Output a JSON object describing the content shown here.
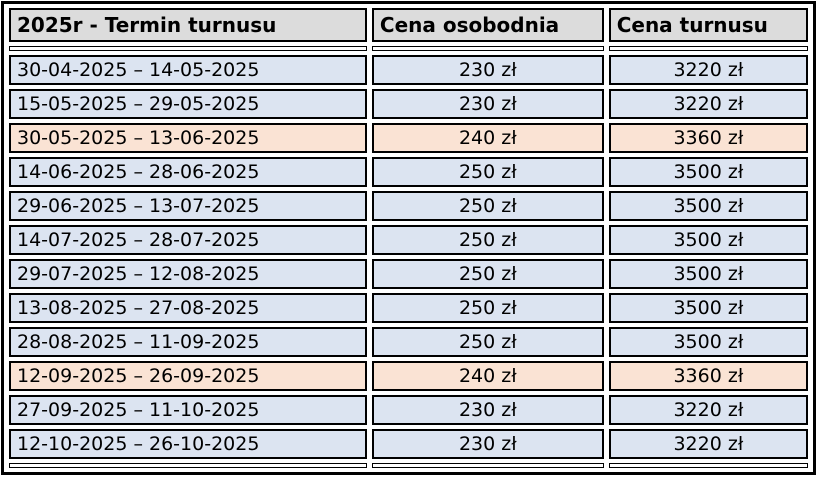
{
  "table": {
    "headers": [
      "2025r - Termin turnusu",
      "Cena osobodnia",
      "Cena turnusu"
    ],
    "rows": [
      {
        "termin": "30-04-2025 – 14-05-2025",
        "cena_osobodnia": "230 zł",
        "cena_turnusu": "3220 zł",
        "highlight": false
      },
      {
        "termin": "15-05-2025 – 29-05-2025",
        "cena_osobodnia": "230 zł",
        "cena_turnusu": "3220 zł",
        "highlight": false
      },
      {
        "termin": "30-05-2025 – 13-06-2025",
        "cena_osobodnia": "240 zł",
        "cena_turnusu": "3360 zł",
        "highlight": true
      },
      {
        "termin": "14-06-2025 – 28-06-2025",
        "cena_osobodnia": "250 zł",
        "cena_turnusu": "3500 zł",
        "highlight": false
      },
      {
        "termin": "29-06-2025 – 13-07-2025",
        "cena_osobodnia": "250 zł",
        "cena_turnusu": "3500 zł",
        "highlight": false
      },
      {
        "termin": "14-07-2025 – 28-07-2025",
        "cena_osobodnia": "250 zł",
        "cena_turnusu": "3500 zł",
        "highlight": false
      },
      {
        "termin": "29-07-2025 – 12-08-2025",
        "cena_osobodnia": "250 zł",
        "cena_turnusu": "3500 zł",
        "highlight": false
      },
      {
        "termin": "13-08-2025 – 27-08-2025",
        "cena_osobodnia": "250 zł",
        "cena_turnusu": "3500 zł",
        "highlight": false
      },
      {
        "termin": "28-08-2025 – 11-09-2025",
        "cena_osobodnia": "250 zł",
        "cena_turnusu": "3500 zł",
        "highlight": false
      },
      {
        "termin": "12-09-2025 – 26-09-2025",
        "cena_osobodnia": "240 zł",
        "cena_turnusu": "3360 zł",
        "highlight": true
      },
      {
        "termin": "27-09-2025 – 11-10-2025",
        "cena_osobodnia": "230 zł",
        "cena_turnusu": "3220 zł",
        "highlight": false
      },
      {
        "termin": "12-10-2025 – 26-10-2025",
        "cena_osobodnia": "230 zł",
        "cena_turnusu": "3220 zł",
        "highlight": false
      }
    ],
    "colors": {
      "row_blue": "#dce4f1",
      "row_peach": "#fae3d4",
      "header_bg": "#dcdcdc",
      "border": "#000000",
      "text": "#000000"
    }
  }
}
